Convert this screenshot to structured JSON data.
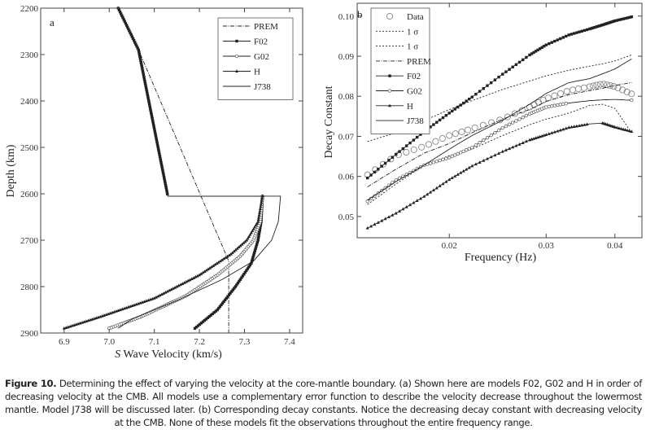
{
  "chart_data": [
    {
      "type": "line",
      "panel_label": "a",
      "xlabel_italic": "S",
      "xlabel": "Wave Velocity (km/s)",
      "ylabel": "Depth (km)",
      "xlim": [
        6.848,
        7.429
      ],
      "ylim": [
        2200,
        2900
      ],
      "y_inverted": true,
      "xticks": [
        "6.9",
        "7.0",
        "7.1",
        "7.2",
        "7.3",
        "7.4"
      ],
      "yticks": [
        "2200",
        "2300",
        "2400",
        "2500",
        "2600",
        "2700",
        "2800",
        "2900"
      ],
      "legend_position": "top-right",
      "grid": false,
      "series": [
        {
          "name": "PREM",
          "style": "dash-dot",
          "marker": "none",
          "x": [
            7.02,
            7.065,
            7.265,
            7.265
          ],
          "y": [
            2200,
            2290,
            2745,
            2900
          ]
        },
        {
          "name": "F02",
          "style": "solid",
          "marker": "filled-square",
          "x": [
            7.02,
            7.065,
            7.13,
            7.34,
            7.337,
            7.33,
            7.315,
            7.28,
            7.24,
            7.19
          ],
          "y": [
            2200,
            2290,
            2605,
            2605,
            2660,
            2700,
            2750,
            2800,
            2850,
            2890
          ]
        },
        {
          "name": "G02",
          "style": "solid",
          "marker": "open-circle",
          "x": [
            7.34,
            7.335,
            7.32,
            7.29,
            7.24,
            7.17,
            7.07,
            7.0
          ],
          "y": [
            2605,
            2660,
            2700,
            2735,
            2775,
            2820,
            2865,
            2890
          ]
        },
        {
          "name": "H",
          "style": "solid",
          "marker": "filled-triangle",
          "x": [
            7.34,
            7.33,
            7.305,
            7.27,
            7.2,
            7.1,
            6.98,
            6.9
          ],
          "y": [
            2605,
            2660,
            2700,
            2730,
            2775,
            2825,
            2865,
            2890
          ]
        },
        {
          "name": "J738",
          "style": "solid",
          "marker": "none",
          "x": [
            7.13,
            7.38,
            7.375,
            7.36,
            7.32,
            7.25,
            7.15,
            7.05,
            7.02
          ],
          "y": [
            2605,
            2605,
            2660,
            2700,
            2745,
            2785,
            2830,
            2870,
            2890
          ]
        }
      ]
    },
    {
      "type": "line",
      "panel_label": "b",
      "xlabel": "Frequency (Hz)",
      "ylabel": "Decay Constant",
      "xscale": "log",
      "xlim": [
        0.0136,
        0.0448
      ],
      "ylim": [
        0.0447,
        0.1032
      ],
      "xticks": [
        "0.02",
        "0.03",
        "0.04"
      ],
      "yticks": [
        "0.05",
        "0.06",
        "0.07",
        "0.08",
        "0.09",
        "0.10"
      ],
      "legend_position": "top-left",
      "grid": false,
      "x": [
        0.0142,
        0.016,
        0.018,
        0.02,
        0.022,
        0.025,
        0.028,
        0.03,
        0.033,
        0.036,
        0.038,
        0.04,
        0.0429
      ],
      "series": [
        {
          "name": "Data",
          "style": "none",
          "marker": "large-open-circle",
          "values": [
            0.0604,
            0.0652,
            0.0675,
            0.0702,
            0.0719,
            0.0743,
            0.0773,
            0.0794,
            0.0814,
            0.0824,
            0.0831,
            0.0824,
            0.0806
          ]
        },
        {
          "name": "1 σ",
          "style": "dotted",
          "marker": "none",
          "values": [
            0.0687,
            0.0709,
            0.0739,
            0.0767,
            0.0789,
            0.0817,
            0.0838,
            0.0851,
            0.0865,
            0.0875,
            0.0881,
            0.0888,
            0.0903
          ]
        },
        {
          "name": "1 σ",
          "style": "dotted",
          "marker": "none",
          "values": [
            0.053,
            0.0581,
            0.0628,
            0.0652,
            0.0668,
            0.0702,
            0.0729,
            0.0743,
            0.0758,
            0.0777,
            0.078,
            0.077,
            0.0709
          ]
        },
        {
          "name": "PREM",
          "style": "dash-dot",
          "marker": "none",
          "values": [
            0.0574,
            0.0618,
            0.0658,
            0.0682,
            0.0709,
            0.0743,
            0.0767,
            0.0787,
            0.0804,
            0.0814,
            0.082,
            0.0827,
            0.0834
          ]
        },
        {
          "name": "F02",
          "style": "solid",
          "marker": "filled-square",
          "values": [
            0.0596,
            0.0655,
            0.0712,
            0.0758,
            0.0798,
            0.0855,
            0.0903,
            0.0928,
            0.0953,
            0.0968,
            0.0978,
            0.0988,
            0.0998
          ]
        },
        {
          "name": "G02",
          "style": "solid",
          "marker": "open-circle",
          "values": [
            0.0538,
            0.0591,
            0.0628,
            0.0647,
            0.0672,
            0.0721,
            0.0756,
            0.0773,
            0.0783,
            0.0789,
            0.0791,
            0.0792,
            0.079
          ]
        },
        {
          "name": "H",
          "style": "solid",
          "marker": "filled-triangle",
          "values": [
            0.0471,
            0.0508,
            0.055,
            0.0592,
            0.0626,
            0.0662,
            0.0691,
            0.0704,
            0.0722,
            0.0731,
            0.0733,
            0.0723,
            0.0712
          ]
        },
        {
          "name": "J738",
          "style": "solid",
          "marker": "none",
          "values": [
            0.0541,
            0.0587,
            0.0628,
            0.0668,
            0.0702,
            0.074,
            0.078,
            0.0807,
            0.0834,
            0.0844,
            0.0856,
            0.0868,
            0.0893
          ]
        }
      ]
    }
  ],
  "caption": {
    "label": "Figure 10.",
    "text": " Determining the effect of varying the velocity at the core-mantle boundary. (a) Shown here are models F02, G02 and H in order of decreasing velocity at the CMB. All models use a complementary error function to describe the velocity decrease throughout the lowermost mantle. Model J738 will be discussed later. (b) Corresponding decay constants. Notice the decreasing decay constant with decreasing velocity at the CMB. None of these models fit the observations throughout the entire frequency range."
  },
  "colors": {
    "ink": "#222222",
    "data_marker": "#888888"
  }
}
